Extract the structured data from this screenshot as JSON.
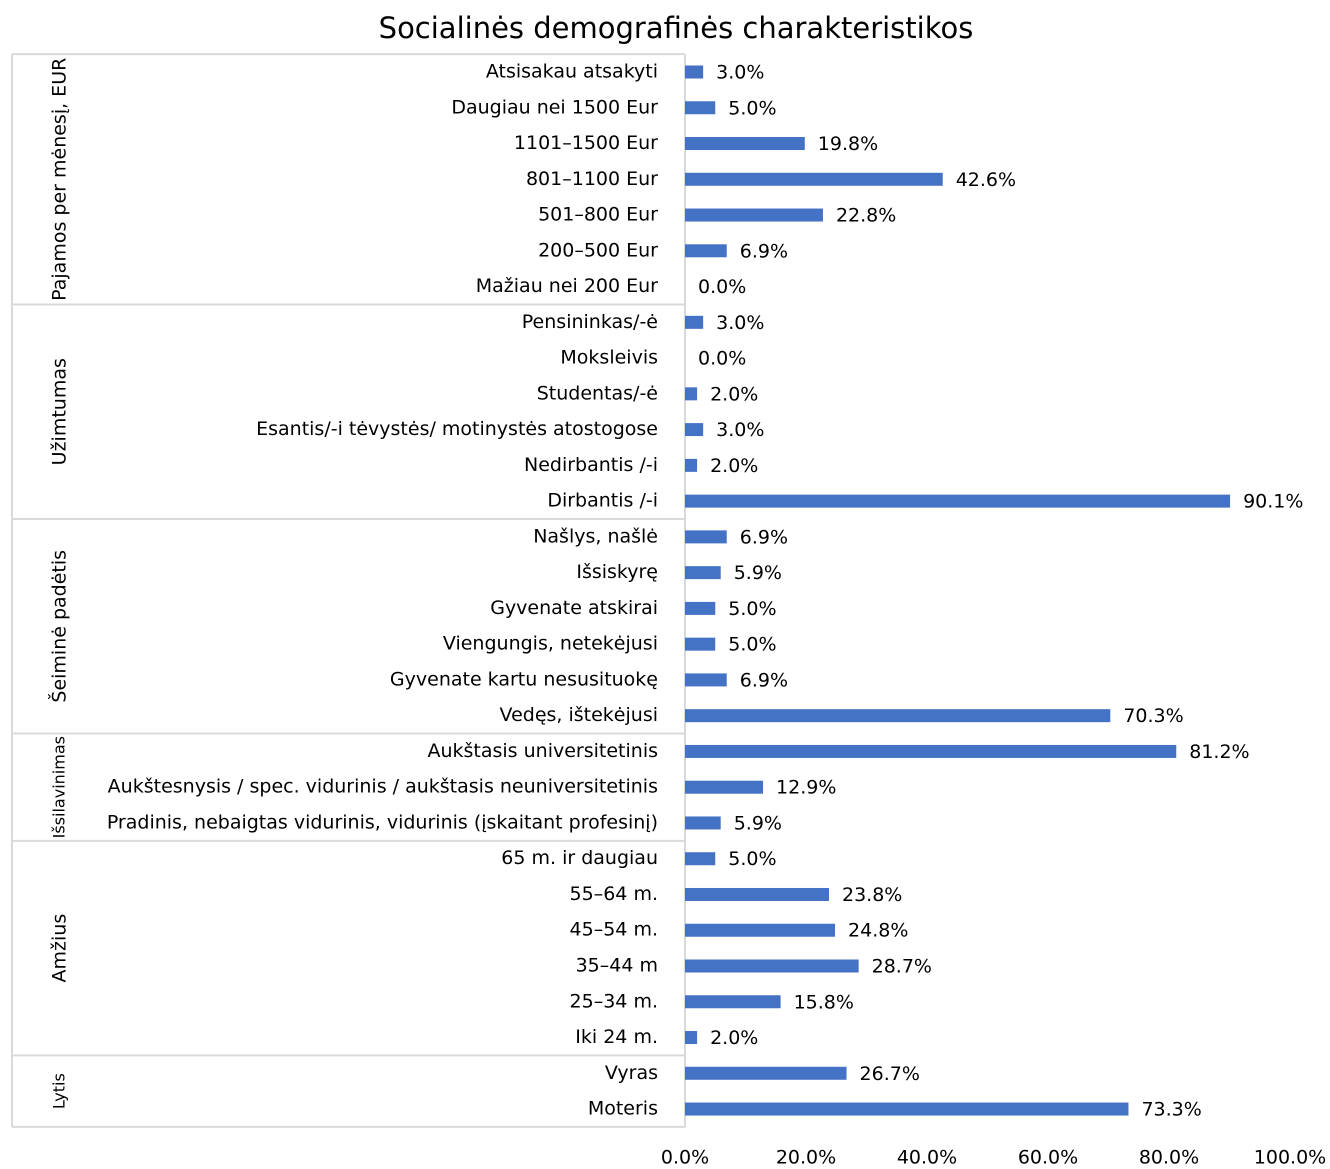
{
  "chart_data": {
    "type": "bar",
    "orientation": "horizontal",
    "title": "Socialinės demografinės charakteristikos",
    "color": "#4472c4",
    "xlim": [
      0,
      100
    ],
    "xticks": [
      {
        "value": 0,
        "label": "0.0%"
      },
      {
        "value": 20,
        "label": "20.0%"
      },
      {
        "value": 40,
        "label": "40.0%"
      },
      {
        "value": 60,
        "label": "60.0%"
      },
      {
        "value": 80,
        "label": "80.0%"
      },
      {
        "value": 100,
        "label": "100.0%"
      }
    ],
    "groups": [
      {
        "name": "Pajamos per mėnesį, EUR",
        "categories": [
          "Atsisakau atsakyti",
          "Daugiau nei 1500 Eur",
          "1101–1500 Eur",
          "801–1100 Eur",
          "501–800 Eur",
          "200–500 Eur",
          "Mažiau nei 200 Eur"
        ],
        "values": [
          3.0,
          5.0,
          19.8,
          42.6,
          22.8,
          6.9,
          0.0
        ],
        "value_labels": [
          "3.0%",
          "5.0%",
          "19.8%",
          "42.6%",
          "22.8%",
          "6.9%",
          "0.0%"
        ]
      },
      {
        "name": "Užimtumas",
        "categories": [
          "Pensininkas/-ė",
          "Moksleivis",
          "Studentas/-ė",
          "Esantis/-i tėvystės/ motinystės atostogose",
          "Nedirbantis /-i",
          "Dirbantis /-i"
        ],
        "values": [
          3.0,
          0.0,
          2.0,
          3.0,
          2.0,
          90.1
        ],
        "value_labels": [
          "3.0%",
          "0.0%",
          "2.0%",
          "3.0%",
          "2.0%",
          "90.1%"
        ]
      },
      {
        "name": "Šeiminė padėtis",
        "categories": [
          "Našlys, našlė",
          "Išsiskyrę",
          "Gyvenate atskirai",
          "Viengungis, netekėjusi",
          "Gyvenate kartu nesusituokę",
          "Vedęs, ištekėjusi"
        ],
        "values": [
          6.9,
          5.9,
          5.0,
          5.0,
          6.9,
          70.3
        ],
        "value_labels": [
          "6.9%",
          "5.9%",
          "5.0%",
          "5.0%",
          "6.9%",
          "70.3%"
        ]
      },
      {
        "name": "Išsilavinimas",
        "categories": [
          "Aukštasis universitetinis",
          "Aukštesnysis / spec. vidurinis / aukštasis neuniversitetinis",
          "Pradinis, nebaigtas vidurinis, vidurinis (įskaitant profesinį)"
        ],
        "values": [
          81.2,
          12.9,
          5.9
        ],
        "value_labels": [
          "81.2%",
          "12.9%",
          "5.9%"
        ]
      },
      {
        "name": "Amžius",
        "categories": [
          "65 m. ir daugiau",
          "55–64 m.",
          "45–54 m.",
          "35–44 m",
          "25–34 m.",
          "Iki 24 m."
        ],
        "values": [
          5.0,
          23.8,
          24.8,
          28.7,
          15.8,
          2.0
        ],
        "value_labels": [
          "5.0%",
          "23.8%",
          "24.8%",
          "28.7%",
          "15.8%",
          "2.0%"
        ]
      },
      {
        "name": "Lytis",
        "categories": [
          "Vyras",
          "Moteris"
        ],
        "values": [
          26.7,
          73.3
        ],
        "value_labels": [
          "26.7%",
          "73.3%"
        ]
      }
    ]
  }
}
